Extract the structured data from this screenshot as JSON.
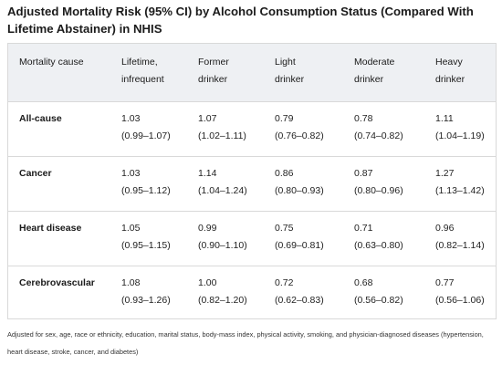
{
  "title": "Adjusted Mortality Risk (95% CI) by Alcohol Consumption Status (Compared With Lifetime Abstainer) in NHIS",
  "columns": [
    [
      "Mortality cause"
    ],
    [
      "Lifetime,",
      "infrequent"
    ],
    [
      "Former",
      "drinker"
    ],
    [
      "Light",
      "drinker"
    ],
    [
      "Moderate",
      "drinker"
    ],
    [
      "Heavy",
      "drinker"
    ]
  ],
  "rows": [
    {
      "cause": "All-cause",
      "cells": [
        [
          "1.03",
          "(0.99–1.07)"
        ],
        [
          "1.07",
          "(1.02–1.11)"
        ],
        [
          "0.79",
          "(0.76–0.82)"
        ],
        [
          "0.78",
          "(0.74–0.82)"
        ],
        [
          "1.11",
          "(1.04–1.19)"
        ]
      ]
    },
    {
      "cause": "Cancer",
      "cells": [
        [
          "1.03",
          "(0.95–1.12)"
        ],
        [
          "1.14",
          "(1.04–1.24)"
        ],
        [
          "0.86",
          "(0.80–0.93)"
        ],
        [
          "0.87",
          "(0.80–0.96)"
        ],
        [
          "1.27",
          "(1.13–1.42)"
        ]
      ]
    },
    {
      "cause": "Heart disease",
      "cells": [
        [
          "1.05",
          "(0.95–1.15)"
        ],
        [
          "0.99",
          "(0.90–1.10)"
        ],
        [
          "0.75",
          "(0.69–0.81)"
        ],
        [
          "0.71",
          "(0.63–0.80)"
        ],
        [
          "0.96",
          "(0.82–1.14)"
        ]
      ]
    },
    {
      "cause": "Cerebrovascular",
      "cells": [
        [
          "1.08",
          "(0.93–1.26)"
        ],
        [
          "1.00",
          "(0.82–1.20)"
        ],
        [
          "0.72",
          "(0.62–0.83)"
        ],
        [
          "0.68",
          "(0.56–0.82)"
        ],
        [
          "0.77",
          "(0.56–1.06)"
        ]
      ]
    }
  ],
  "footnote": "Adjusted for sex, age, race or ethnicity, education, marital status, body-mass index, physical activity, smoking, and physician-diagnosed diseases (hypertension, heart disease, stroke, cancer, and diabetes)",
  "colors": {
    "header_bg": "#eef0f3",
    "border": "#d9d9d9",
    "text": "#1a1a1a"
  }
}
